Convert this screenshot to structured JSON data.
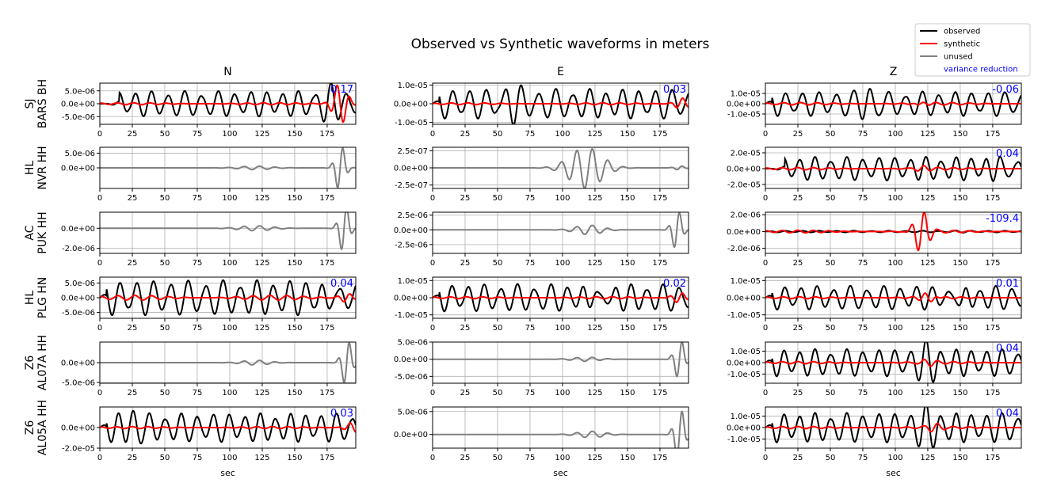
{
  "chart_data": {
    "type": "line",
    "title": "Observed vs Synthetic waveforms in meters",
    "xlabel": "sec",
    "xlim": [
      0,
      197
    ],
    "xticks": [
      0,
      25,
      50,
      75,
      100,
      125,
      150,
      175
    ],
    "grid": true,
    "legend": {
      "placement": "top-right",
      "entries": [
        {
          "label": "observed",
          "color": "#000000"
        },
        {
          "label": "synthetic",
          "color": "#ff0000"
        },
        {
          "label": "unused",
          "color": "#808080"
        },
        {
          "label": "variance reduction",
          "color": "#0000ff",
          "text_only": true
        }
      ]
    },
    "columns": [
      "N",
      "E",
      "Z"
    ],
    "rows": [
      {
        "network": "SJ",
        "station": "BARS BH"
      },
      {
        "network": "HL",
        "station": "NVR HH"
      },
      {
        "network": "AC",
        "station": "PUK HH"
      },
      {
        "network": "HL",
        "station": "PLG HN"
      },
      {
        "network": "Z6",
        "station": "AL07A HH"
      },
      {
        "network": "Z6",
        "station": "AL05A HH"
      }
    ],
    "panels": [
      [
        {
          "mode": "used",
          "ylim": [
            -8e-06,
            8e-06
          ],
          "yticks": [
            [
              5e-06,
              "5.0e-06"
            ],
            [
              0,
              "0.0e+00"
            ],
            [
              -5e-06,
              "-5.0e-06"
            ]
          ],
          "vr": "0.17",
          "obs": {
            "amp": 5e-06,
            "period": 12.5,
            "start": 15,
            "burst": [
              175,
              8.5e-06
            ]
          },
          "syn": {
            "amp": 4e-07,
            "period": 12.5,
            "burst": [
              185,
              8e-06
            ]
          }
        },
        {
          "mode": "unused",
          "ylim": [
            -7e-06,
            7e-06
          ],
          "yticks": [
            [
              5e-06,
              "5.0e-06"
            ],
            [
              0,
              "0.0e+00"
            ]
          ],
          "vr": "",
          "unused": {
            "amp": 6e-07,
            "center": 120,
            "width": 12,
            "period": 12,
            "burst": [
              185,
              8e-06
            ]
          }
        },
        {
          "mode": "unused",
          "ylim": [
            -2.5e-06,
            1.6e-06
          ],
          "yticks": [
            [
              0,
              "0.0e+00"
            ],
            [
              -2e-06,
              "-2.0e-06"
            ]
          ],
          "vr": "",
          "unused": {
            "amp": 2.5e-07,
            "center": 120,
            "width": 12,
            "period": 12,
            "burst": [
              188,
              2.5e-06
            ]
          }
        },
        {
          "mode": "used",
          "ylim": [
            -7e-06,
            7e-06
          ],
          "yticks": [
            [
              5e-06,
              "5.0e-06"
            ],
            [
              0,
              "0.0e+00"
            ],
            [
              -5e-06,
              "-5.0e-06"
            ]
          ],
          "vr": "0.04",
          "obs": {
            "amp": 6e-06,
            "period": 13,
            "start": 5,
            "burst": [
              180,
              7e-06
            ]
          },
          "syn": {
            "amp": 8e-07,
            "period": 13,
            "burst": [
              190,
              1.5e-06
            ]
          }
        },
        {
          "mode": "unused",
          "ylim": [
            -5.2e-06,
            5.2e-06
          ],
          "yticks": [
            [
              0,
              "0.0e+00"
            ],
            [
              -5e-06,
              "-5.0e-06"
            ]
          ],
          "vr": "",
          "unused": {
            "amp": 6e-07,
            "center": 120,
            "width": 10,
            "period": 12,
            "burst": [
              190,
              6e-06
            ]
          }
        },
        {
          "mode": "used",
          "ylim": [
            -2e-05,
            2e-05
          ],
          "yticks": [
            [
              0,
              "0.0e+00"
            ],
            [
              -2e-05,
              "-2.0e-05"
            ]
          ],
          "vr": "0.03",
          "obs": {
            "amp": 1.4e-05,
            "period": 12,
            "start": 5,
            "burst": [
              25,
              1.6e-05
            ]
          },
          "syn": {
            "amp": 1e-06,
            "period": 12,
            "burst": [
              195,
              5e-06
            ]
          }
        }
      ],
      [
        {
          "mode": "used",
          "ylim": [
            -1.1e-05,
            1.1e-05
          ],
          "yticks": [
            [
              1e-05,
              "1.0e-05"
            ],
            [
              0,
              "0.0e+00"
            ],
            [
              -1e-05,
              "-1.0e-05"
            ]
          ],
          "vr": "0.03",
          "obs": {
            "amp": 8e-06,
            "period": 13,
            "start": 5,
            "burst": [
              60,
              1.1e-05
            ]
          },
          "syn": {
            "amp": 5e-07,
            "period": 13,
            "burst": [
              192,
              3e-06
            ]
          }
        },
        {
          "mode": "unused",
          "ylim": [
            -3e-07,
            3e-07
          ],
          "yticks": [
            [
              2.5e-07,
              "2.5e-07"
            ],
            [
              0,
              "0.0e+00"
            ],
            [
              -2.5e-07,
              "-2.5e-07"
            ]
          ],
          "vr": "",
          "unused": {
            "amp": 3e-07,
            "center": 118,
            "width": 12,
            "period": 12,
            "burst": [
              190,
              3e-08
            ]
          }
        },
        {
          "mode": "unused",
          "ylim": [
            -4e-06,
            3e-06
          ],
          "yticks": [
            [
              2.5e-06,
              "2.5e-06"
            ],
            [
              0,
              "0.0e+00"
            ],
            [
              -2.5e-06,
              "-2.5e-06"
            ]
          ],
          "vr": "",
          "unused": {
            "amp": 8e-07,
            "center": 120,
            "width": 10,
            "period": 12,
            "burst": [
              188,
              3.5e-06
            ]
          }
        },
        {
          "mode": "used",
          "ylim": [
            -1.2e-05,
            1.2e-05
          ],
          "yticks": [
            [
              1e-05,
              "1.0e-05"
            ],
            [
              0,
              "0.0e+00"
            ],
            [
              -1e-05,
              "-1.0e-05"
            ]
          ],
          "vr": "0.02",
          "obs": {
            "amp": 8e-06,
            "period": 12.5,
            "start": 5,
            "burst": [
              125,
              1.2e-05
            ]
          },
          "syn": {
            "amp": 6e-07,
            "period": 12.5,
            "burst": [
              190,
              3e-06
            ]
          }
        },
        {
          "mode": "unused",
          "ylim": [
            -7e-06,
            5e-06
          ],
          "yticks": [
            [
              5e-06,
              "5.0e-06"
            ],
            [
              0,
              "0.0e+00"
            ],
            [
              -5e-06,
              "-5.0e-06"
            ]
          ],
          "vr": "",
          "unused": {
            "amp": 6e-07,
            "center": 118,
            "width": 10,
            "period": 12,
            "burst": [
              190,
              6e-06
            ]
          }
        },
        {
          "mode": "unused",
          "ylim": [
            -3e-06,
            6e-06
          ],
          "yticks": [
            [
              5e-06,
              "5.0e-06"
            ],
            [
              0,
              "0.0e+00"
            ]
          ],
          "vr": "",
          "unused": {
            "amp": 7e-07,
            "center": 122,
            "width": 10,
            "period": 12,
            "burst": [
              190,
              6e-06
            ]
          }
        }
      ],
      [
        {
          "mode": "used",
          "ylim": [
            -2e-05,
            2e-05
          ],
          "yticks": [
            [
              1e-05,
              "1.0e-05"
            ],
            [
              0,
              "0.0e+00"
            ],
            [
              -1e-05,
              "-1.0e-05"
            ]
          ],
          "vr": "-0.06",
          "obs": {
            "amp": 1.2e-05,
            "period": 13,
            "start": 5,
            "burst": [
              80,
              1.8e-05
            ]
          },
          "syn": {
            "amp": 1.2e-06,
            "period": 13,
            "burst": [
              120,
              2e-06
            ]
          }
        },
        {
          "mode": "used",
          "ylim": [
            -2.5e-05,
            2.7e-05
          ],
          "yticks": [
            [
              2e-05,
              "2.0e-05"
            ],
            [
              0,
              "0.0e+00"
            ],
            [
              -2e-05,
              "-2.0e-05"
            ]
          ],
          "vr": "0.04",
          "obs": {
            "amp": 1.5e-05,
            "period": 12,
            "start": 15,
            "burst": [
              180,
              2.2e-05
            ]
          },
          "syn": {
            "amp": 1.5e-06,
            "period": 12,
            "burst": [
              120,
              3e-06
            ]
          }
        },
        {
          "mode": "used",
          "ylim": [
            -2.6e-06,
            2.3e-06
          ],
          "yticks": [
            [
              2e-06,
              "2.0e-06"
            ],
            [
              0,
              "0.0e+00"
            ],
            [
              -2e-06,
              "-2.0e-06"
            ]
          ],
          "vr": "-109.4",
          "obs": {
            "amp": 1e-07,
            "period": 13,
            "start": 5,
            "burst": [
              150,
              1e-07
            ]
          },
          "syn": {
            "amp": 1.5e-07,
            "period": 12,
            "burst": [
              120,
              2.5e-06
            ]
          }
        },
        {
          "mode": "used",
          "ylim": [
            -1.2e-05,
            1.2e-05
          ],
          "yticks": [
            [
              1e-05,
              "1.0e-05"
            ],
            [
              0,
              "0.0e+00"
            ],
            [
              -1e-05,
              "-1.0e-05"
            ]
          ],
          "vr": "0.01",
          "obs": {
            "amp": 7e-06,
            "period": 12.5,
            "start": 5,
            "burst": [
              150,
              1.2e-05
            ]
          },
          "syn": {
            "amp": 6e-07,
            "period": 12.5,
            "burst": [
              125,
              3e-06
            ]
          }
        },
        {
          "mode": "used",
          "ylim": [
            -1.8e-05,
            1.8e-05
          ],
          "yticks": [
            [
              1e-05,
              "1.0e-05"
            ],
            [
              0,
              "0.0e+00"
            ],
            [
              -1e-05,
              "-1.0e-05"
            ]
          ],
          "vr": "0.04",
          "obs": {
            "amp": 1.2e-05,
            "period": 12,
            "start": 5,
            "burst": [
              125,
              1.7e-05
            ]
          },
          "syn": {
            "amp": 1e-06,
            "period": 12,
            "burst": [
              125,
              2.5e-06
            ]
          }
        },
        {
          "mode": "used",
          "ylim": [
            -1.8e-05,
            1.8e-05
          ],
          "yticks": [
            [
              1e-05,
              "1.0e-05"
            ],
            [
              0,
              "0.0e+00"
            ],
            [
              -1e-05,
              "-1.0e-05"
            ]
          ],
          "vr": "0.04",
          "obs": {
            "amp": 1.3e-05,
            "period": 12,
            "start": 5,
            "burst": [
              125,
              1.7e-05
            ]
          },
          "syn": {
            "amp": 1e-06,
            "period": 12,
            "burst": [
              130,
              3e-06
            ]
          }
        }
      ]
    ]
  }
}
